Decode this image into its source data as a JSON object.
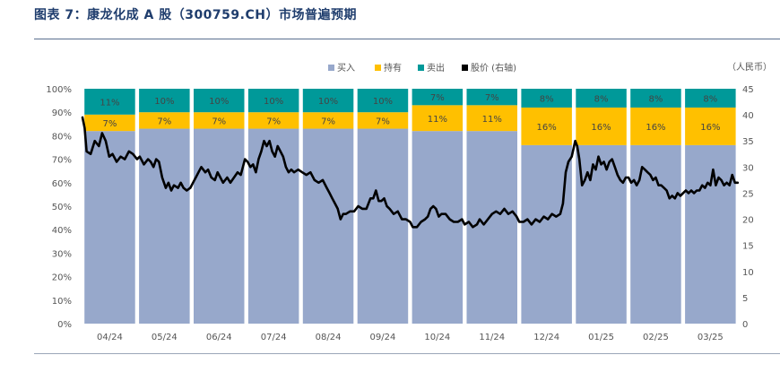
{
  "figure": {
    "title": "图表 7：康龙化成 A 股（300759.CH）市场普遍预期"
  },
  "chart_data": {
    "type": "bar",
    "stacked": true,
    "percent_stacked": true,
    "categories": [
      "04/24",
      "05/24",
      "06/24",
      "07/24",
      "08/24",
      "09/24",
      "10/24",
      "11/24",
      "12/24",
      "01/25",
      "02/25",
      "03/25"
    ],
    "series": [
      {
        "name": "买入",
        "color": "#97a8cb",
        "values": [
          82,
          83,
          83,
          83,
          83,
          83,
          82,
          82,
          76,
          76,
          76,
          76
        ]
      },
      {
        "name": "持有",
        "color": "#ffc000",
        "values": [
          7,
          7,
          7,
          7,
          7,
          7,
          11,
          11,
          16,
          16,
          16,
          16
        ]
      },
      {
        "name": "卖出",
        "color": "#009999",
        "values": [
          11,
          10,
          10,
          10,
          10,
          10,
          7,
          7,
          8,
          8,
          8,
          8
        ]
      }
    ],
    "line_series": {
      "name": "股价 (右轴)",
      "color": "#000000",
      "axis": "right",
      "points": [
        [
          0.0,
          39.5
        ],
        [
          0.08,
          37.5
        ],
        [
          0.15,
          33
        ],
        [
          0.3,
          32.5
        ],
        [
          0.45,
          35
        ],
        [
          0.6,
          34
        ],
        [
          0.72,
          36.5
        ],
        [
          0.85,
          35
        ],
        [
          0.98,
          32
        ],
        [
          1.1,
          32.5
        ],
        [
          1.25,
          31
        ],
        [
          1.4,
          32
        ],
        [
          1.55,
          31.5
        ],
        [
          1.7,
          33
        ],
        [
          1.85,
          32.5
        ],
        [
          2.0,
          31.5
        ],
        [
          2.1,
          32
        ],
        [
          2.25,
          30.5
        ],
        [
          2.4,
          31.5
        ],
        [
          2.5,
          31
        ],
        [
          2.6,
          30
        ],
        [
          2.7,
          31.5
        ],
        [
          2.8,
          31
        ],
        [
          2.92,
          28
        ],
        [
          3.05,
          26
        ],
        [
          3.15,
          27
        ],
        [
          3.25,
          25.5
        ],
        [
          3.35,
          26.5
        ],
        [
          3.5,
          26
        ],
        [
          3.6,
          27
        ],
        [
          3.7,
          26
        ],
        [
          3.82,
          25.5
        ],
        [
          3.95,
          26
        ],
        [
          4.05,
          27
        ],
        [
          4.15,
          28
        ],
        [
          4.25,
          29
        ],
        [
          4.35,
          30
        ],
        [
          4.5,
          29
        ],
        [
          4.6,
          29.5
        ],
        [
          4.72,
          28
        ],
        [
          4.85,
          27.5
        ],
        [
          4.95,
          29
        ],
        [
          5.05,
          28
        ],
        [
          5.15,
          27
        ],
        [
          5.3,
          28
        ],
        [
          5.42,
          27
        ],
        [
          5.55,
          28
        ],
        [
          5.68,
          29
        ],
        [
          5.8,
          28.5
        ],
        [
          5.95,
          31.5
        ],
        [
          6.05,
          31
        ],
        [
          6.15,
          30
        ],
        [
          6.25,
          30.5
        ],
        [
          6.35,
          29
        ],
        [
          6.45,
          31.5
        ],
        [
          6.55,
          33
        ],
        [
          6.65,
          35
        ],
        [
          6.75,
          34
        ],
        [
          6.85,
          35
        ],
        [
          6.95,
          33
        ],
        [
          7.05,
          32
        ],
        [
          7.15,
          34
        ],
        [
          7.25,
          33
        ],
        [
          7.35,
          32
        ],
        [
          7.45,
          30
        ],
        [
          7.55,
          29
        ],
        [
          7.65,
          29.5
        ],
        [
          7.75,
          29
        ],
        [
          7.9,
          29.5
        ],
        [
          8.05,
          29
        ],
        [
          8.2,
          28.5
        ],
        [
          8.35,
          29
        ],
        [
          8.5,
          27.5
        ],
        [
          8.65,
          27
        ],
        [
          8.8,
          27.5
        ],
        [
          8.95,
          26
        ],
        [
          9.05,
          25
        ],
        [
          9.15,
          24
        ],
        [
          9.25,
          23
        ],
        [
          9.35,
          22
        ],
        [
          9.45,
          20
        ],
        [
          9.55,
          21
        ],
        [
          9.65,
          21
        ],
        [
          9.8,
          21.5
        ],
        [
          9.95,
          21.5
        ],
        [
          10.1,
          22.5
        ],
        [
          10.25,
          22
        ],
        [
          10.4,
          22
        ],
        [
          10.55,
          24
        ],
        [
          10.65,
          24
        ],
        [
          10.75,
          25.5
        ],
        [
          10.85,
          23.5
        ],
        [
          10.95,
          23.5
        ],
        [
          11.05,
          24
        ],
        [
          11.15,
          22.5
        ],
        [
          11.25,
          22
        ],
        [
          11.4,
          21
        ],
        [
          11.55,
          21.5
        ],
        [
          11.7,
          20
        ],
        [
          11.85,
          20
        ],
        [
          12.0,
          19.5
        ],
        [
          12.1,
          18.5
        ],
        [
          12.25,
          18.5
        ],
        [
          12.4,
          19.5
        ],
        [
          12.55,
          20
        ],
        [
          12.65,
          20.5
        ],
        [
          12.75,
          22
        ],
        [
          12.85,
          22.5
        ],
        [
          12.95,
          22
        ],
        [
          13.05,
          20.5
        ],
        [
          13.15,
          21
        ],
        [
          13.3,
          21
        ],
        [
          13.45,
          20
        ],
        [
          13.6,
          19.5
        ],
        [
          13.75,
          19.5
        ],
        [
          13.9,
          20
        ],
        [
          14.0,
          19
        ],
        [
          14.15,
          19.5
        ],
        [
          14.3,
          18.5
        ],
        [
          14.45,
          19
        ],
        [
          14.55,
          20
        ],
        [
          14.7,
          19
        ],
        [
          14.85,
          20
        ],
        [
          15.0,
          21
        ],
        [
          15.15,
          21.5
        ],
        [
          15.3,
          21
        ],
        [
          15.45,
          22
        ],
        [
          15.6,
          21
        ],
        [
          15.75,
          21.5
        ],
        [
          15.9,
          20.5
        ],
        [
          16.0,
          19.5
        ],
        [
          16.15,
          19.5
        ],
        [
          16.3,
          20
        ],
        [
          16.45,
          19
        ],
        [
          16.6,
          20
        ],
        [
          16.75,
          19.5
        ],
        [
          16.9,
          20.5
        ],
        [
          17.05,
          20
        ],
        [
          17.2,
          21
        ],
        [
          17.35,
          20.5
        ],
        [
          17.5,
          21
        ],
        [
          17.6,
          23
        ],
        [
          17.7,
          29
        ],
        [
          17.8,
          31
        ],
        [
          17.92,
          32
        ],
        [
          18.05,
          35
        ],
        [
          18.12,
          34
        ],
        [
          18.2,
          31.5
        ],
        [
          18.3,
          26.5
        ],
        [
          18.4,
          27.5
        ],
        [
          18.5,
          29
        ],
        [
          18.6,
          27.5
        ],
        [
          18.7,
          30.5
        ],
        [
          18.8,
          29.5
        ],
        [
          18.9,
          32
        ],
        [
          19.0,
          30.5
        ],
        [
          19.1,
          31
        ],
        [
          19.2,
          29.5
        ],
        [
          19.3,
          31
        ],
        [
          19.4,
          31.5
        ],
        [
          19.5,
          30
        ],
        [
          19.6,
          28.5
        ],
        [
          19.7,
          27.5
        ],
        [
          19.8,
          27
        ],
        [
          19.9,
          28
        ],
        [
          20.0,
          28
        ],
        [
          20.1,
          27
        ],
        [
          20.2,
          27.5
        ],
        [
          20.3,
          26.5
        ],
        [
          20.4,
          27.5
        ],
        [
          20.5,
          30
        ],
        [
          20.6,
          29.5
        ],
        [
          20.7,
          29
        ],
        [
          20.8,
          28.5
        ],
        [
          20.9,
          27.5
        ],
        [
          21.0,
          28
        ],
        [
          21.1,
          26.5
        ],
        [
          21.2,
          26.5
        ],
        [
          21.3,
          26
        ],
        [
          21.4,
          25.5
        ],
        [
          21.5,
          24
        ],
        [
          21.6,
          24.5
        ],
        [
          21.7,
          24
        ],
        [
          21.8,
          25
        ],
        [
          21.9,
          24.5
        ],
        [
          22.0,
          25
        ],
        [
          22.1,
          25.5
        ],
        [
          22.2,
          25
        ],
        [
          22.3,
          25.5
        ],
        [
          22.4,
          25
        ],
        [
          22.5,
          25.5
        ],
        [
          22.6,
          25.5
        ],
        [
          22.7,
          26.5
        ],
        [
          22.8,
          26
        ],
        [
          22.9,
          27
        ],
        [
          23.0,
          26.5
        ],
        [
          23.1,
          29.5
        ],
        [
          23.2,
          26.5
        ],
        [
          23.3,
          28
        ],
        [
          23.4,
          27.5
        ],
        [
          23.5,
          26.5
        ],
        [
          23.6,
          27
        ],
        [
          23.7,
          26.5
        ],
        [
          23.8,
          28.5
        ],
        [
          23.9,
          27
        ],
        [
          24.0,
          27
        ]
      ]
    },
    "left_axis": {
      "ylim": [
        0,
        100
      ],
      "ticks": [
        "0%",
        "10%",
        "20%",
        "30%",
        "40%",
        "50%",
        "60%",
        "70%",
        "80%",
        "90%",
        "100%"
      ]
    },
    "right_axis": {
      "ylim": [
        0,
        45
      ],
      "ticks": [
        "0",
        "5",
        "10",
        "15",
        "20",
        "25",
        "30",
        "35",
        "40",
        "45"
      ],
      "unit": "（人民币）"
    },
    "legend": {
      "position": "top-center",
      "items": [
        "买入",
        "持有",
        "卖出",
        "股价 (右轴)"
      ]
    },
    "grid": false
  }
}
